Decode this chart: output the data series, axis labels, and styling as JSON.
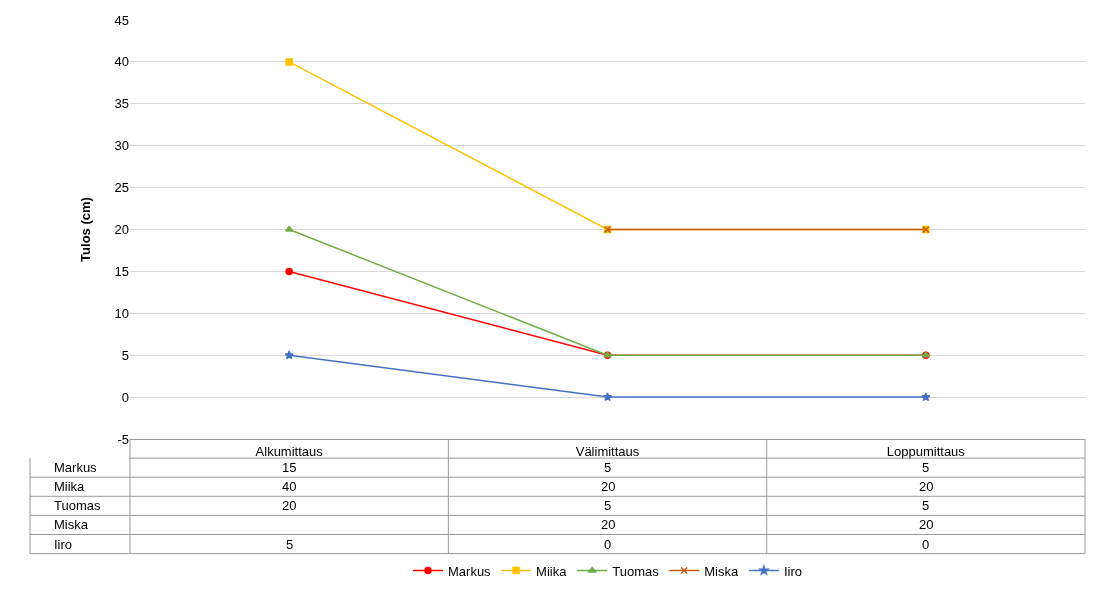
{
  "chart_data": {
    "type": "line",
    "ylabel": "Tulos (cm)",
    "categories": [
      "Alkumittaus",
      "Välimittaus",
      "Loppumittaus"
    ],
    "series": [
      {
        "name": "Markus",
        "color": "#ff0000",
        "marker": "circle",
        "values": [
          15,
          5,
          5
        ]
      },
      {
        "name": "Miika",
        "color": "#ffc000",
        "marker": "square",
        "values": [
          40,
          20,
          20
        ]
      },
      {
        "name": "Tuomas",
        "color": "#70ad47",
        "marker": "triangle",
        "values": [
          20,
          5,
          5
        ]
      },
      {
        "name": "Miska",
        "color": "#c55a11",
        "marker": "cross",
        "values": [
          null,
          20,
          20
        ]
      },
      {
        "name": "Iiro",
        "color": "#4472c4",
        "marker": "star",
        "values": [
          5,
          0,
          0
        ]
      }
    ],
    "ylim": [
      -5,
      45
    ],
    "yticks": [
      -5,
      0,
      5,
      10,
      15,
      20,
      25,
      30,
      35,
      40,
      45
    ],
    "grid": "y",
    "legend": "bottom",
    "data_labels": true
  }
}
